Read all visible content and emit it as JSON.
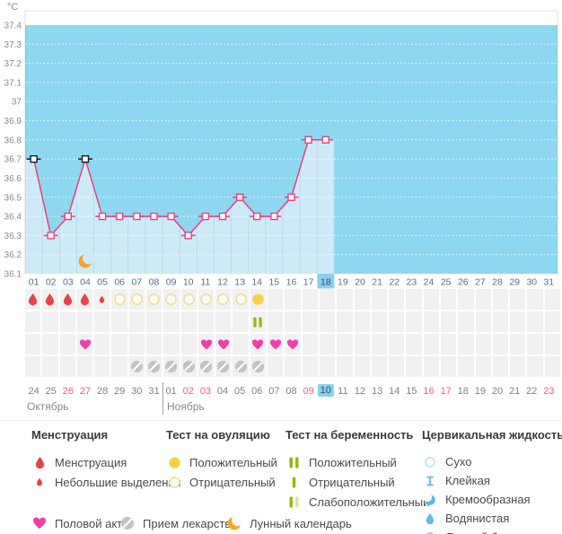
{
  "chart_data": {
    "type": "line",
    "unit": "°C",
    "ylabel": "°C",
    "ylim": [
      36.1,
      37.4
    ],
    "ytick_step": 0.1,
    "ytick_labels": [
      "37.4",
      "37.3",
      "37.2",
      "37.1",
      "37",
      "36.9",
      "36.8",
      "36.7",
      "36.6",
      "36.5",
      "36.4",
      "36.3",
      "36.2",
      "36.1"
    ],
    "x_labels": [
      "01",
      "02",
      "03",
      "04",
      "05",
      "06",
      "07",
      "08",
      "09",
      "10",
      "11",
      "12",
      "13",
      "14",
      "15",
      "16",
      "17",
      "18",
      "19",
      "20",
      "21",
      "22",
      "23",
      "24",
      "25",
      "26",
      "27",
      "28",
      "29",
      "30",
      "31"
    ],
    "temperatures": [
      36.7,
      36.3,
      36.4,
      36.7,
      36.4,
      36.4,
      36.4,
      36.4,
      36.4,
      36.3,
      36.4,
      36.4,
      36.5,
      36.4,
      36.4,
      36.5,
      36.8,
      36.8,
      null,
      null,
      null,
      null,
      null,
      null,
      null,
      null,
      null,
      null,
      null,
      null,
      null
    ],
    "outlined_marker_days": [
      1,
      4
    ],
    "today_day": 18,
    "moon_day": 4,
    "grid": "horizontal-dotted",
    "legend_position": "bottom"
  },
  "tracking_rows": {
    "menstruation": {
      "full": [
        1,
        2,
        3,
        4
      ],
      "small": [
        5
      ]
    },
    "ovulation_test": {
      "negative": [
        6,
        7,
        8,
        9,
        10,
        11,
        12,
        13
      ],
      "positive": [
        14
      ]
    },
    "pregnancy_test": {
      "positive": [
        14
      ]
    },
    "intercourse": [
      4,
      11,
      12,
      14,
      15,
      16
    ],
    "medication": [
      7,
      8,
      9,
      10,
      11,
      12,
      13,
      14
    ]
  },
  "calendar": {
    "months": [
      "Октябрь",
      "Ноябрь"
    ],
    "month_split_index": 8,
    "today_date": "10",
    "dates": [
      {
        "label": "24"
      },
      {
        "label": "25"
      },
      {
        "label": "26",
        "weekend": true
      },
      {
        "label": "27",
        "weekend": true
      },
      {
        "label": "28"
      },
      {
        "label": "29"
      },
      {
        "label": "30"
      },
      {
        "label": "31"
      },
      {
        "label": "01"
      },
      {
        "label": "02",
        "weekend": true
      },
      {
        "label": "03",
        "weekend": true
      },
      {
        "label": "04"
      },
      {
        "label": "05"
      },
      {
        "label": "06"
      },
      {
        "label": "07"
      },
      {
        "label": "08"
      },
      {
        "label": "09",
        "weekend": true
      },
      {
        "label": "10",
        "today": true
      },
      {
        "label": "11"
      },
      {
        "label": "12"
      },
      {
        "label": "13"
      },
      {
        "label": "14"
      },
      {
        "label": "15"
      },
      {
        "label": "16",
        "weekend": true
      },
      {
        "label": "17",
        "weekend": true
      },
      {
        "label": "18"
      },
      {
        "label": "19"
      },
      {
        "label": "20"
      },
      {
        "label": "21"
      },
      {
        "label": "22"
      },
      {
        "label": "23",
        "weekend": true
      }
    ]
  },
  "legend": {
    "sections": [
      {
        "title": "Менструация",
        "items": [
          {
            "icon": "menstruation-drop",
            "size": 15,
            "label": "Менструация"
          },
          {
            "icon": "menstruation-drop",
            "size": 10,
            "label": "Небольшие выделения"
          }
        ]
      },
      {
        "title": "Тест на овуляцию",
        "items": [
          {
            "icon": "ovulation-positive",
            "size": 15,
            "label": "Положительный"
          },
          {
            "icon": "ovulation-negative",
            "size": 15,
            "label": "Отрицательный"
          }
        ]
      },
      {
        "title": "Тест на беременность",
        "items": [
          {
            "icon": "pregnancy-positive",
            "size": 15,
            "label": "Положительный"
          },
          {
            "icon": "pregnancy-negative",
            "size": 15,
            "label": "Отрицательный"
          },
          {
            "icon": "pregnancy-weak",
            "size": 15,
            "label": "Слабоположительный"
          }
        ]
      },
      {
        "title": "Цервикальная жидкость",
        "items": [
          {
            "icon": "cf-dry",
            "size": 14,
            "label": "Сухо"
          },
          {
            "icon": "cf-sticky",
            "size": 14,
            "label": "Клейкая"
          },
          {
            "icon": "cf-creamy",
            "size": 14,
            "label": "Кремообразная"
          },
          {
            "icon": "cf-watery",
            "size": 14,
            "label": "Водянистая"
          },
          {
            "icon": "cf-eggwhite",
            "size": 14,
            "label": "Яичный белок"
          }
        ]
      }
    ],
    "footer_items": [
      {
        "icon": "intercourse-heart",
        "size": 16,
        "label": "Половой акт"
      },
      {
        "icon": "medication",
        "size": 16,
        "label": "Прием лекарств"
      },
      {
        "icon": "moon",
        "size": 16,
        "label": "Лунный календарь"
      }
    ]
  },
  "colors": {
    "chart_bg": "#8dd7f1",
    "chart_fill": "#cfeaf7",
    "fill_grid_line": "#b2dcee",
    "fill_edge": "#7286a8",
    "line": "#e8417e",
    "marker_outlined": "#1c1c1c",
    "today_highlight": "#8ccfed",
    "today_text": "#2d5168",
    "axis_text": "#8a8a8a",
    "day_text": "#4e7089",
    "menstruation_red": "#e8434b",
    "ovulation_yellow": "#f6d243",
    "ovulation_ring": "#efdd9d",
    "pregnancy_green": "#9cb414",
    "pregnancy_green_pale": "#dbe5a6",
    "heart_pink": "#f33fa5",
    "medication_gray": "#c3c3c3",
    "moon_orange": "#f7a326",
    "cervical_blue": "#64bbe9",
    "weekend_red": "#ee5f79",
    "grid_cell": "#f1f1f1"
  }
}
